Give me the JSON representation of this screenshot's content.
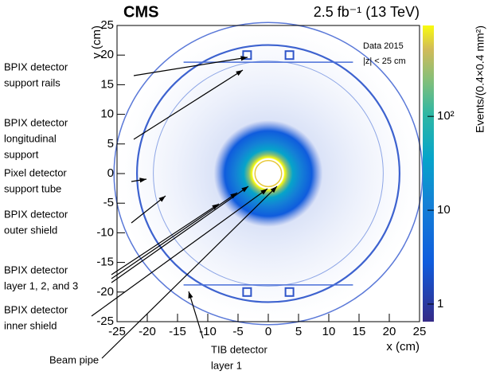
{
  "chart_data": {
    "type": "heatmap",
    "title": "CMS",
    "subtitle": "2.5 fb⁻¹ (13 TeV)",
    "xlabel": "x (cm)",
    "ylabel": "y (cm)",
    "colorbar_label": "Events/(0.4×0.4 mm²)",
    "legend": [
      "Data 2015",
      "|z| < 25 cm"
    ],
    "xlim": [
      -25,
      25
    ],
    "xticks": [
      -25,
      -20,
      -15,
      -10,
      -5,
      0,
      5,
      10,
      15,
      20,
      25
    ],
    "ylim": [
      -25,
      25
    ],
    "yticks": [
      -25,
      -20,
      -15,
      -10,
      -5,
      0,
      5,
      10,
      15,
      20,
      25
    ],
    "zlim": [
      0.65,
      930
    ],
    "zscale": "log",
    "zticks": [
      1,
      10,
      {
        "value": 100,
        "label": "10²"
      }
    ],
    "annotations": [
      {
        "lines": [
          "BPIX detector",
          "support rails"
        ]
      },
      {
        "lines": [
          "BPIX detector",
          "longitudinal",
          "support"
        ]
      },
      {
        "lines": [
          "Pixel detector",
          "support tube"
        ]
      },
      {
        "lines": [
          "BPIX detector",
          "outer shield"
        ]
      },
      {
        "lines": [
          "BPIX detector",
          "layer 1, 2, and 3"
        ]
      },
      {
        "lines": [
          "BPIX detector",
          "inner shield"
        ]
      },
      {
        "lines": [
          "Beam pipe"
        ]
      },
      {
        "lines": [
          "TIB detector",
          "layer 1"
        ]
      }
    ]
  }
}
